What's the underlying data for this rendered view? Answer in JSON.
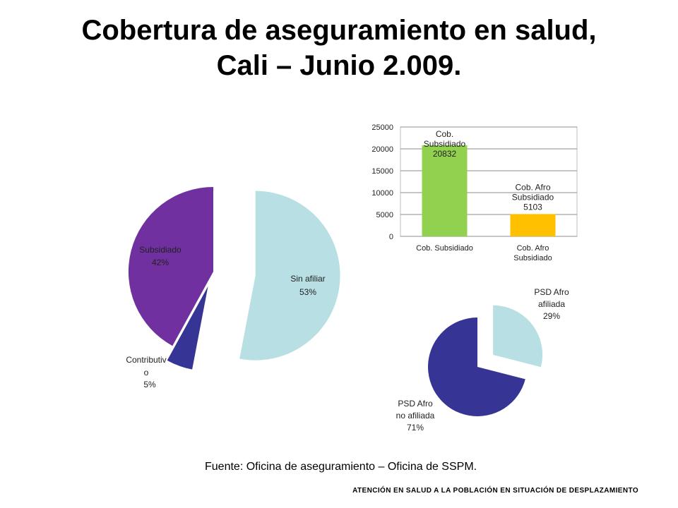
{
  "title": {
    "line1": "Cobertura de aseguramiento en salud,",
    "line2": "Cali – Junio 2.009."
  },
  "source": "Fuente: Oficina de aseguramiento – Oficina de SSPM.",
  "footer": "ATENCIÓN EN SALUD A LA POBLACIÓN EN SITUACIÓN DE DESPLAZAMIENTO",
  "chart_data": [
    {
      "type": "pie",
      "title": "",
      "slices": [
        {
          "label": "Sin afiliar",
          "value": 53,
          "display": "53%",
          "color": "#b8dfe3"
        },
        {
          "label": "Contributivo",
          "value": 5,
          "display": "5%",
          "label_lines": [
            "Contributiv",
            "o"
          ],
          "color": "#363596"
        },
        {
          "label": "Subsidiado",
          "value": 42,
          "display": "42%",
          "color": "#7030a0"
        }
      ]
    },
    {
      "type": "bar",
      "title": "",
      "categories": [
        "Cob. Subsidiado",
        "Cob. Afro Subsidiado"
      ],
      "category_lines": [
        [
          "Cob. Subsidiado"
        ],
        [
          "Cob. Afro",
          "Subsidiado"
        ]
      ],
      "values": [
        20832,
        5103
      ],
      "data_labels": [
        [
          "Cob.",
          "Subsidiado",
          "20832"
        ],
        [
          "Cob. Afro",
          "Subsidiado",
          "5103"
        ]
      ],
      "colors": [
        "#92d050",
        "#ffc000"
      ],
      "ylim": [
        0,
        25000
      ],
      "yticks": [
        0,
        5000,
        10000,
        15000,
        20000,
        25000
      ],
      "grid": true,
      "xlabel": "",
      "ylabel": ""
    },
    {
      "type": "pie",
      "title": "",
      "slices": [
        {
          "label": "PSD Afro afiliada",
          "value": 29,
          "display": "29%",
          "label_lines": [
            "PSD Afro",
            "afiliada",
            "29%"
          ],
          "color": "#b8dfe3"
        },
        {
          "label": "PSD Afro no afiliada",
          "value": 71,
          "display": "71%",
          "label_lines": [
            "PSD Afro",
            "no afiliada",
            "71%"
          ],
          "color": "#363596"
        }
      ]
    }
  ]
}
